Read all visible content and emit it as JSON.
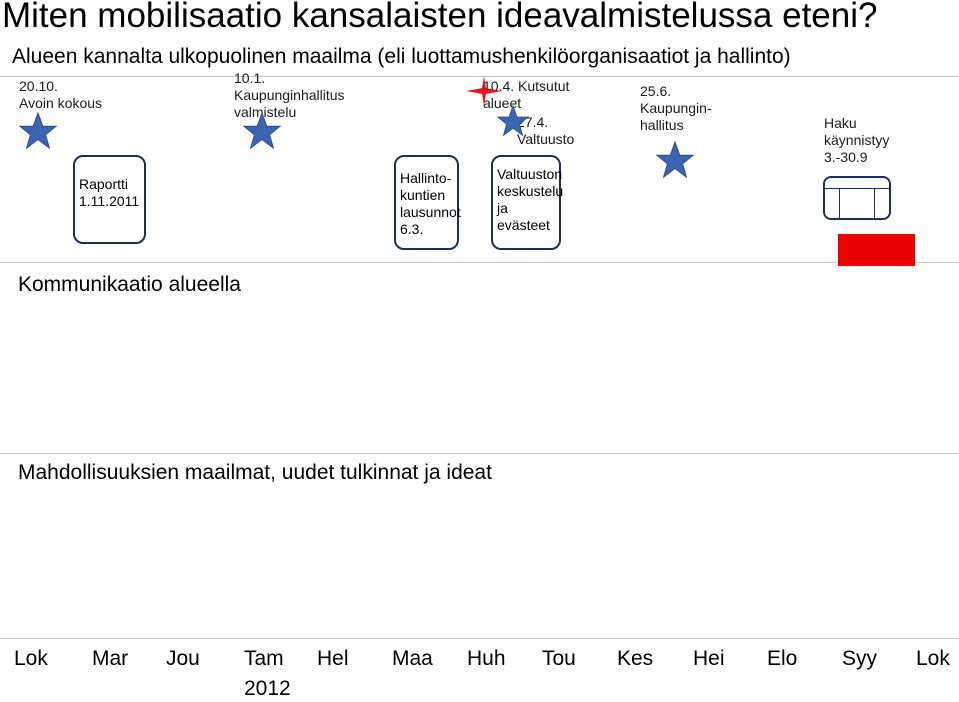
{
  "title": "Miten mobilisaatio kansalaisten ideavalmistelussa eteni?",
  "subtitle": "Alueen kannalta ulkopuolinen maailma (eli luottamushenkilöorganisaatiot ja hallinto)",
  "bands": {
    "communication": "Kommunikaatio alueella",
    "possibilities": "Mahdollisuuksien maailmat, uudet tulkinnat ja ideat"
  },
  "events": {
    "e1": [
      "20.10.",
      "Avoin kokous"
    ],
    "e2": [
      "10.1.",
      "Kaupunginhallitus",
      "valmistelu"
    ],
    "e3": [
      "10.4. Kutsutut",
      "alueet"
    ],
    "e4": [
      "27.4.",
      "Valtuusto"
    ],
    "e5": [
      "25.6.",
      "Kaupungin-",
      "hallitus"
    ],
    "e6": [
      "Haku",
      "käynnistyy",
      "3.-30.9"
    ]
  },
  "boxes": {
    "b1": [
      "Raportti",
      "1.11.2011"
    ],
    "b2": [
      "Hallinto-",
      "kuntien",
      "lausunnot",
      "6.3."
    ],
    "b3": [
      "Valtuuston",
      "keskustelu",
      "ja",
      "evästeet"
    ]
  },
  "months": [
    "Lok",
    "Mar",
    "Jou",
    "Tam",
    "Hel",
    "Maa",
    "Huh",
    "Tou",
    "Kes",
    "Hei",
    "Elo",
    "Syy",
    "Lok"
  ],
  "year": "2012",
  "colors": {
    "star_blue": "#3b65b3",
    "star_red": "#e8101a",
    "box_border": "#1c2f57",
    "red_block": "#ee0000"
  },
  "icons": {
    "milestone": "star-icon",
    "highlight": "red-star-icon"
  }
}
